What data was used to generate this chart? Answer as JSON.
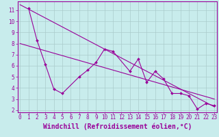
{
  "xlabel": "Windchill (Refroidissement éolien,°C)",
  "bg_color": "#c8ecec",
  "line_color": "#990099",
  "grid_color": "#aacccc",
  "x_ticks": [
    0,
    1,
    2,
    3,
    4,
    5,
    6,
    7,
    8,
    9,
    10,
    11,
    12,
    13,
    14,
    15,
    16,
    17,
    18,
    19,
    20,
    21,
    22,
    23
  ],
  "y_ticks": [
    2,
    3,
    4,
    5,
    6,
    7,
    8,
    9,
    10,
    11
  ],
  "xlim": [
    -0.3,
    23.3
  ],
  "ylim": [
    1.8,
    11.8
  ],
  "zigzag_x": [
    1,
    2,
    3,
    4,
    5,
    7,
    8,
    9,
    10,
    11,
    13,
    14,
    15,
    16,
    17,
    18,
    19,
    20,
    21,
    22,
    23
  ],
  "zigzag_y": [
    11.2,
    8.3,
    6.1,
    3.9,
    3.5,
    5.0,
    5.6,
    6.3,
    7.5,
    7.3,
    5.5,
    6.6,
    4.5,
    5.5,
    4.8,
    3.5,
    3.5,
    3.3,
    2.1,
    2.6,
    2.4
  ],
  "line1_x": [
    0,
    23
  ],
  "line1_y": [
    11.5,
    2.3
  ],
  "line2_x": [
    0,
    23
  ],
  "line2_y": [
    8.0,
    3.0
  ],
  "font_color": "#990099",
  "tick_fontsize": 5.5,
  "xlabel_fontsize": 7.0
}
